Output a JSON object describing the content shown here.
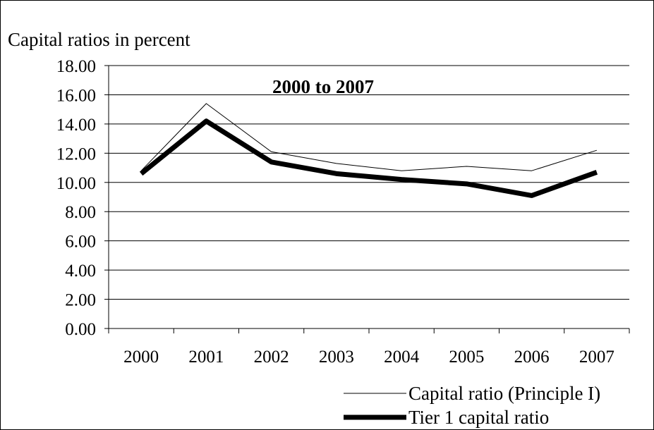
{
  "chart_data": {
    "type": "line",
    "title": "2000 to 2007",
    "ylabel": "Capital ratios in percent",
    "xlabel": "",
    "categories": [
      "2000",
      "2001",
      "2002",
      "2003",
      "2004",
      "2005",
      "2006",
      "2007"
    ],
    "ylim": [
      0,
      18
    ],
    "yticks": [
      "0.00",
      "2.00",
      "4.00",
      "6.00",
      "8.00",
      "10.00",
      "12.00",
      "14.00",
      "16.00",
      "18.00"
    ],
    "grid": true,
    "legend_position": "bottom-right",
    "series": [
      {
        "name": "Capital ratio (Principle I)",
        "values": [
          10.8,
          15.4,
          12.1,
          11.3,
          10.8,
          11.1,
          10.8,
          12.2
        ],
        "color": "#000000",
        "style": "thin"
      },
      {
        "name": "Tier 1 capital ratio",
        "values": [
          10.6,
          14.2,
          11.4,
          10.6,
          10.2,
          9.9,
          9.1,
          10.7
        ],
        "color": "#000000",
        "style": "thick"
      }
    ]
  }
}
